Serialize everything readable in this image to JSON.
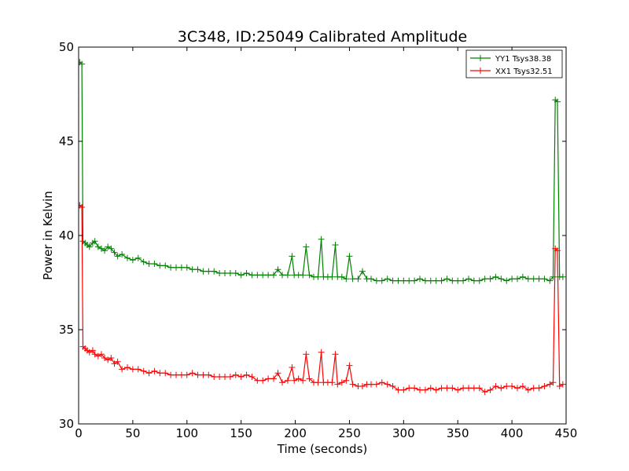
{
  "chart_data": {
    "type": "line",
    "title": "3C348, ID:25049 Calibrated Amplitude",
    "xlabel": "Time (seconds)",
    "ylabel": "Power in Kelvin",
    "xlim": [
      0,
      450
    ],
    "ylim": [
      30,
      50
    ],
    "x_ticks": [
      0,
      50,
      100,
      150,
      200,
      250,
      300,
      350,
      400,
      450
    ],
    "y_ticks": [
      30,
      35,
      40,
      45,
      50
    ],
    "grid": false,
    "legend_position": "top-right",
    "marker": "+",
    "series": [
      {
        "name": "YY1 Tsys38.38",
        "color": "#008000",
        "points": [
          [
            1,
            49.2
          ],
          [
            3,
            49.1
          ],
          [
            4,
            39.7
          ],
          [
            6,
            39.6
          ],
          [
            8,
            39.5
          ],
          [
            10,
            39.4
          ],
          [
            13,
            39.6
          ],
          [
            15,
            39.7
          ],
          [
            18,
            39.4
          ],
          [
            21,
            39.3
          ],
          [
            24,
            39.2
          ],
          [
            27,
            39.4
          ],
          [
            30,
            39.3
          ],
          [
            33,
            39.1
          ],
          [
            36,
            38.9
          ],
          [
            40,
            39.0
          ],
          [
            45,
            38.8
          ],
          [
            50,
            38.7
          ],
          [
            55,
            38.8
          ],
          [
            60,
            38.6
          ],
          [
            65,
            38.5
          ],
          [
            70,
            38.5
          ],
          [
            75,
            38.4
          ],
          [
            80,
            38.4
          ],
          [
            85,
            38.3
          ],
          [
            90,
            38.3
          ],
          [
            95,
            38.3
          ],
          [
            100,
            38.3
          ],
          [
            105,
            38.2
          ],
          [
            110,
            38.2
          ],
          [
            115,
            38.1
          ],
          [
            120,
            38.1
          ],
          [
            125,
            38.1
          ],
          [
            130,
            38.0
          ],
          [
            135,
            38.0
          ],
          [
            140,
            38.0
          ],
          [
            145,
            38.0
          ],
          [
            150,
            37.9
          ],
          [
            155,
            38.0
          ],
          [
            160,
            37.9
          ],
          [
            165,
            37.9
          ],
          [
            170,
            37.9
          ],
          [
            175,
            37.9
          ],
          [
            180,
            37.9
          ],
          [
            184,
            38.2
          ],
          [
            188,
            37.9
          ],
          [
            193,
            37.9
          ],
          [
            197,
            38.9
          ],
          [
            199,
            37.9
          ],
          [
            203,
            37.9
          ],
          [
            207,
            37.9
          ],
          [
            210,
            39.4
          ],
          [
            213,
            37.9
          ],
          [
            217,
            37.8
          ],
          [
            221,
            37.8
          ],
          [
            224,
            39.8
          ],
          [
            226,
            37.8
          ],
          [
            230,
            37.8
          ],
          [
            234,
            37.8
          ],
          [
            237,
            39.5
          ],
          [
            239,
            37.8
          ],
          [
            243,
            37.8
          ],
          [
            247,
            37.7
          ],
          [
            250,
            38.9
          ],
          [
            253,
            37.7
          ],
          [
            258,
            37.7
          ],
          [
            262,
            38.1
          ],
          [
            266,
            37.7
          ],
          [
            270,
            37.7
          ],
          [
            275,
            37.6
          ],
          [
            280,
            37.6
          ],
          [
            285,
            37.7
          ],
          [
            290,
            37.6
          ],
          [
            295,
            37.6
          ],
          [
            300,
            37.6
          ],
          [
            305,
            37.6
          ],
          [
            310,
            37.6
          ],
          [
            315,
            37.7
          ],
          [
            320,
            37.6
          ],
          [
            325,
            37.6
          ],
          [
            330,
            37.6
          ],
          [
            335,
            37.6
          ],
          [
            340,
            37.7
          ],
          [
            345,
            37.6
          ],
          [
            350,
            37.6
          ],
          [
            355,
            37.6
          ],
          [
            360,
            37.7
          ],
          [
            365,
            37.6
          ],
          [
            370,
            37.6
          ],
          [
            375,
            37.7
          ],
          [
            380,
            37.7
          ],
          [
            385,
            37.8
          ],
          [
            390,
            37.7
          ],
          [
            395,
            37.6
          ],
          [
            400,
            37.7
          ],
          [
            405,
            37.7
          ],
          [
            410,
            37.8
          ],
          [
            415,
            37.7
          ],
          [
            420,
            37.7
          ],
          [
            425,
            37.7
          ],
          [
            430,
            37.7
          ],
          [
            435,
            37.6
          ],
          [
            438,
            37.8
          ],
          [
            440,
            47.2
          ],
          [
            442,
            47.1
          ],
          [
            444,
            37.8
          ],
          [
            447,
            37.8
          ]
        ]
      },
      {
        "name": "XX1 Tsys32.51",
        "color": "#ff0000",
        "points": [
          [
            1,
            41.6
          ],
          [
            3,
            41.5
          ],
          [
            4,
            34.1
          ],
          [
            6,
            34.0
          ],
          [
            8,
            33.9
          ],
          [
            10,
            33.8
          ],
          [
            13,
            33.9
          ],
          [
            15,
            33.7
          ],
          [
            18,
            33.6
          ],
          [
            21,
            33.7
          ],
          [
            24,
            33.5
          ],
          [
            27,
            33.4
          ],
          [
            30,
            33.5
          ],
          [
            33,
            33.2
          ],
          [
            36,
            33.3
          ],
          [
            40,
            32.9
          ],
          [
            45,
            33.0
          ],
          [
            50,
            32.9
          ],
          [
            55,
            32.9
          ],
          [
            60,
            32.8
          ],
          [
            65,
            32.7
          ],
          [
            70,
            32.8
          ],
          [
            75,
            32.7
          ],
          [
            80,
            32.7
          ],
          [
            85,
            32.6
          ],
          [
            90,
            32.6
          ],
          [
            95,
            32.6
          ],
          [
            100,
            32.6
          ],
          [
            105,
            32.7
          ],
          [
            110,
            32.6
          ],
          [
            115,
            32.6
          ],
          [
            120,
            32.6
          ],
          [
            125,
            32.5
          ],
          [
            130,
            32.5
          ],
          [
            135,
            32.5
          ],
          [
            140,
            32.5
          ],
          [
            145,
            32.6
          ],
          [
            150,
            32.5
          ],
          [
            155,
            32.6
          ],
          [
            160,
            32.5
          ],
          [
            165,
            32.3
          ],
          [
            170,
            32.3
          ],
          [
            175,
            32.4
          ],
          [
            180,
            32.4
          ],
          [
            184,
            32.7
          ],
          [
            188,
            32.2
          ],
          [
            193,
            32.3
          ],
          [
            197,
            33.0
          ],
          [
            199,
            32.3
          ],
          [
            203,
            32.4
          ],
          [
            207,
            32.3
          ],
          [
            210,
            33.7
          ],
          [
            213,
            32.4
          ],
          [
            217,
            32.2
          ],
          [
            221,
            32.2
          ],
          [
            224,
            33.8
          ],
          [
            226,
            32.2
          ],
          [
            230,
            32.2
          ],
          [
            234,
            32.2
          ],
          [
            237,
            33.7
          ],
          [
            239,
            32.1
          ],
          [
            243,
            32.2
          ],
          [
            247,
            32.3
          ],
          [
            250,
            33.1
          ],
          [
            253,
            32.1
          ],
          [
            258,
            32.0
          ],
          [
            262,
            32.0
          ],
          [
            266,
            32.1
          ],
          [
            270,
            32.1
          ],
          [
            275,
            32.1
          ],
          [
            280,
            32.2
          ],
          [
            285,
            32.1
          ],
          [
            290,
            32.0
          ],
          [
            295,
            31.8
          ],
          [
            300,
            31.8
          ],
          [
            305,
            31.9
          ],
          [
            310,
            31.9
          ],
          [
            315,
            31.8
          ],
          [
            320,
            31.8
          ],
          [
            325,
            31.9
          ],
          [
            330,
            31.8
          ],
          [
            335,
            31.9
          ],
          [
            340,
            31.9
          ],
          [
            345,
            31.9
          ],
          [
            350,
            31.8
          ],
          [
            355,
            31.9
          ],
          [
            360,
            31.9
          ],
          [
            365,
            31.9
          ],
          [
            370,
            31.9
          ],
          [
            375,
            31.7
          ],
          [
            380,
            31.8
          ],
          [
            385,
            32.0
          ],
          [
            390,
            31.9
          ],
          [
            395,
            32.0
          ],
          [
            400,
            32.0
          ],
          [
            405,
            31.9
          ],
          [
            410,
            32.0
          ],
          [
            415,
            31.8
          ],
          [
            420,
            31.9
          ],
          [
            425,
            31.9
          ],
          [
            430,
            32.0
          ],
          [
            435,
            32.1
          ],
          [
            438,
            32.2
          ],
          [
            440,
            39.3
          ],
          [
            442,
            39.2
          ],
          [
            444,
            32.0
          ],
          [
            447,
            32.1
          ]
        ]
      }
    ]
  }
}
